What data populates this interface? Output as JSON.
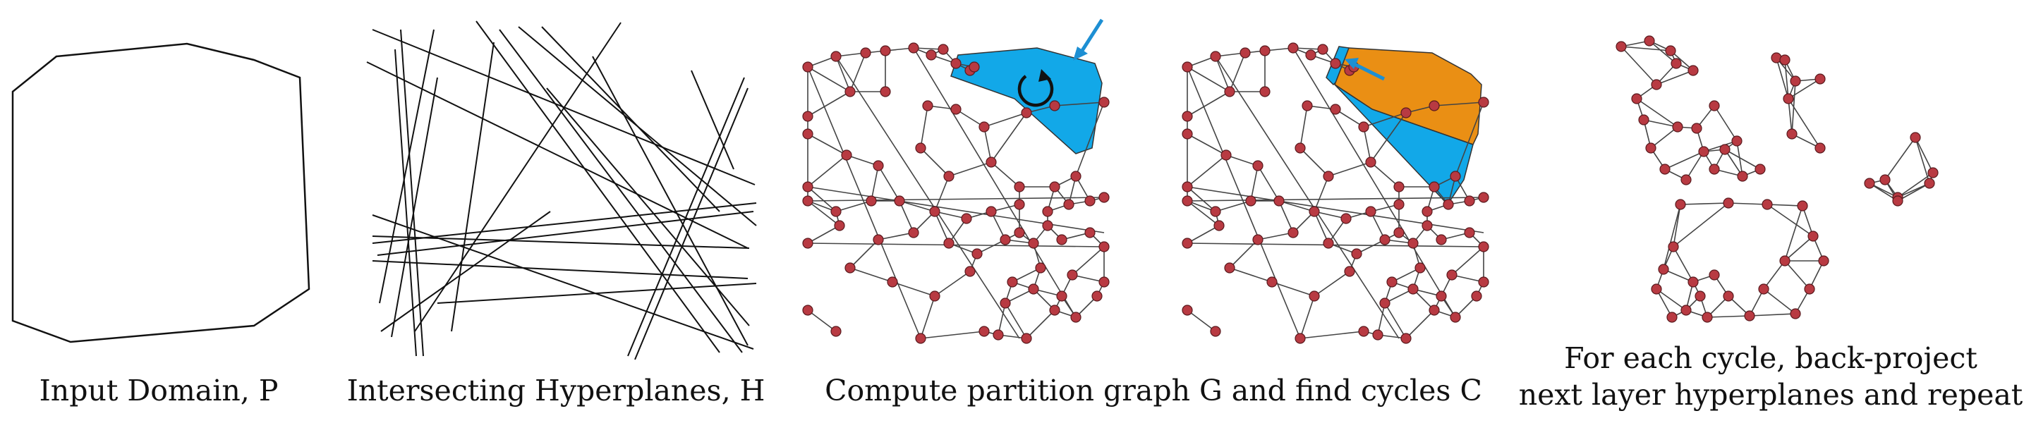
{
  "panels": [
    {
      "id": "input-domain",
      "caption": "Input Domain, P"
    },
    {
      "id": "hyperplanes",
      "caption": "Intersecting Hyperplanes, H"
    },
    {
      "id": "partition",
      "caption": "Compute partition graph G and find cycles C"
    },
    {
      "id": "backproject",
      "caption_line1": "For each cycle, back-project",
      "caption_line2": "next layer hyperplanes and repeat"
    }
  ],
  "colors": {
    "cycle_blue": "#12a8e8",
    "cycle_orange": "#ea8f14",
    "node_red": "#b83a42",
    "edge_gray": "#444444",
    "arrow_blue": "#1d8fd3"
  },
  "icons": [
    "cycle-arrow-icon",
    "pointer-arrow-icon"
  ]
}
